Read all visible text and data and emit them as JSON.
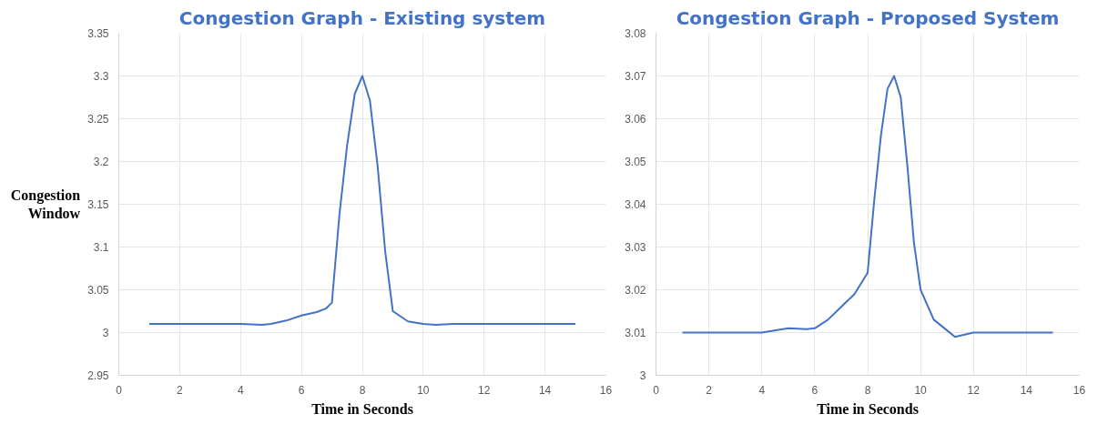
{
  "chart_data": [
    {
      "type": "line",
      "title": "Congestion Graph - Existing system",
      "xlabel": "Time in Seconds",
      "ylabel": "Congestion Window",
      "x": [
        1,
        2,
        3,
        4,
        4.7,
        5,
        5.5,
        6,
        6.5,
        6.8,
        7,
        7.25,
        7.5,
        7.75,
        8,
        8.25,
        8.5,
        8.75,
        9,
        9.5,
        10,
        10.4,
        11,
        12,
        13,
        14,
        15
      ],
      "series": [
        {
          "color": "#4472c4",
          "values": [
            3.01,
            3.01,
            3.01,
            3.01,
            3.009,
            3.01,
            3.014,
            3.02,
            3.024,
            3.028,
            3.035,
            3.139,
            3.219,
            3.279,
            3.3,
            3.271,
            3.195,
            3.095,
            3.025,
            3.013,
            3.01,
            3.009,
            3.01,
            3.01,
            3.01,
            3.01,
            3.01
          ]
        }
      ],
      "xlim": [
        0,
        16
      ],
      "xticks": [
        0,
        2,
        4,
        6,
        8,
        10,
        12,
        14,
        16
      ],
      "ylim": [
        2.95,
        3.35
      ],
      "yticks": [
        2.95,
        3,
        3.05,
        3.1,
        3.15,
        3.2,
        3.25,
        3.3,
        3.35
      ],
      "grid": true,
      "marker": "none",
      "line_style": "solid"
    },
    {
      "type": "line",
      "title": "Congestion Graph - Proposed System",
      "xlabel": "Time in Seconds",
      "x": [
        1,
        2,
        3,
        4,
        5,
        5.7,
        6,
        6.5,
        7,
        7.5,
        8,
        8.25,
        8.5,
        8.75,
        9,
        9.25,
        9.5,
        9.75,
        10,
        10.5,
        11,
        11.3,
        12,
        13,
        14,
        15
      ],
      "series": [
        {
          "color": "#4472c4",
          "values": [
            3.01,
            3.01,
            3.01,
            3.01,
            3.011,
            3.0108,
            3.011,
            3.013,
            3.016,
            3.019,
            3.024,
            3.041,
            3.056,
            3.067,
            3.07,
            3.065,
            3.049,
            3.031,
            3.02,
            3.013,
            3.0105,
            3.009,
            3.01,
            3.01,
            3.01,
            3.01
          ]
        }
      ],
      "xlim": [
        0,
        16
      ],
      "xticks": [
        0,
        2,
        4,
        6,
        8,
        10,
        12,
        14,
        16
      ],
      "ylim": [
        3,
        3.08
      ],
      "yticks": [
        3,
        3.01,
        3.02,
        3.03,
        3.04,
        3.05,
        3.06,
        3.07,
        3.08
      ],
      "grid": true,
      "marker": "none",
      "line_style": "solid"
    }
  ]
}
